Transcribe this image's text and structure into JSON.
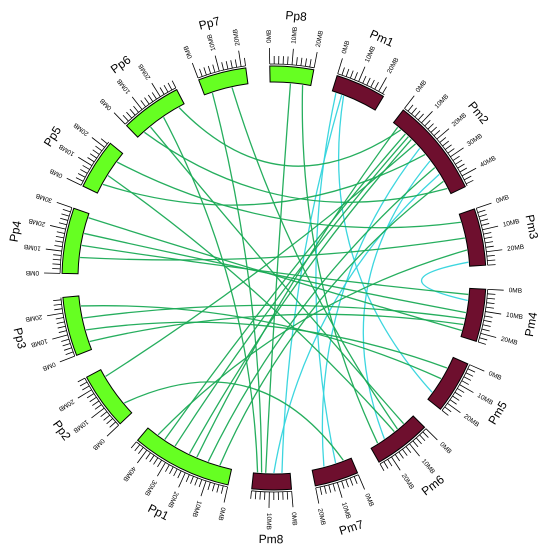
{
  "colors": {
    "pp_fill": "#66ff22",
    "pm_fill": "#6e0f2e",
    "link_green": "#1aaa55",
    "link_cyan": "#33d4dd"
  },
  "chromosomes": [
    {
      "name": "Pp8",
      "group": "pp",
      "length_mb": 20
    },
    {
      "name": "Pm1",
      "group": "pm",
      "length_mb": 23
    },
    {
      "name": "Pm2",
      "group": "pm",
      "length_mb": 45
    },
    {
      "name": "Pm3",
      "group": "pm",
      "length_mb": 26
    },
    {
      "name": "Pm4",
      "group": "pm",
      "length_mb": 24
    },
    {
      "name": "Pm5",
      "group": "pm",
      "length_mb": 24
    },
    {
      "name": "Pm6",
      "group": "pm",
      "length_mb": 26
    },
    {
      "name": "Pm7",
      "group": "pm",
      "length_mb": 20
    },
    {
      "name": "Pm8",
      "group": "pm",
      "length_mb": 18
    },
    {
      "name": "Pp1",
      "group": "pp",
      "length_mb": 46
    },
    {
      "name": "Pp2",
      "group": "pp",
      "length_mb": 26
    },
    {
      "name": "Pp3",
      "group": "pp",
      "length_mb": 27
    },
    {
      "name": "Pp4",
      "group": "pp",
      "length_mb": 30
    },
    {
      "name": "Pp5",
      "group": "pp",
      "length_mb": 23
    },
    {
      "name": "Pp6",
      "group": "pp",
      "length_mb": 28
    },
    {
      "name": "Pp7",
      "group": "pp",
      "length_mb": 22
    }
  ],
  "tick_unit": "MB",
  "links": [
    {
      "a": "Pp7",
      "a_mb": 4,
      "b": "Pm8",
      "b_mb": 14,
      "color": "green"
    },
    {
      "a": "Pp8",
      "a_mb": 10,
      "b": "Pm8",
      "b_mb": 12,
      "color": "green"
    },
    {
      "a": "Pp8",
      "a_mb": 16,
      "b": "Pm6",
      "b_mb": 22,
      "color": "green"
    },
    {
      "a": "Pm1",
      "a_mb": 2,
      "b": "Pm7",
      "b_mb": 8,
      "color": "cyan"
    },
    {
      "a": "Pm1",
      "a_mb": 5,
      "b": "Pm8",
      "b_mb": 4,
      "color": "cyan"
    },
    {
      "a": "Pm1",
      "a_mb": 6,
      "b": "Pm5",
      "b_mb": 20,
      "color": "cyan"
    },
    {
      "a": "Pm2",
      "a_mb": 5,
      "b": "Pp6",
      "b_mb": 25,
      "color": "green"
    },
    {
      "a": "Pm2",
      "a_mb": 8,
      "b": "Pp1",
      "b_mb": 36,
      "color": "green"
    },
    {
      "a": "Pm2",
      "a_mb": 10,
      "b": "Pp1",
      "b_mb": 30,
      "color": "green"
    },
    {
      "a": "Pm2",
      "a_mb": 12,
      "b": "Pp1",
      "b_mb": 22,
      "color": "green"
    },
    {
      "a": "Pm2",
      "a_mb": 15,
      "b": "Pp2",
      "b_mb": 22,
      "color": "green"
    },
    {
      "a": "Pm2",
      "a_mb": 18,
      "b": "Pm7",
      "b_mb": 14,
      "color": "cyan"
    },
    {
      "a": "Pm2",
      "a_mb": 22,
      "b": "Pp5",
      "b_mb": 5,
      "color": "green"
    },
    {
      "a": "Pm2",
      "a_mb": 26,
      "b": "Pm6",
      "b_mb": 18,
      "color": "cyan"
    },
    {
      "a": "Pm2",
      "a_mb": 30,
      "b": "Pp1",
      "b_mb": 12,
      "color": "green"
    },
    {
      "a": "Pm2",
      "a_mb": 34,
      "b": "Pm8",
      "b_mb": 8,
      "color": "cyan"
    },
    {
      "a": "Pm2",
      "a_mb": 38,
      "b": "Pp1",
      "b_mb": 6,
      "color": "green"
    },
    {
      "a": "Pm3",
      "a_mb": 4,
      "b": "Pp5",
      "b_mb": 18,
      "color": "green"
    },
    {
      "a": "Pm3",
      "a_mb": 12,
      "b": "Pp4",
      "b_mb": 8,
      "color": "green"
    },
    {
      "a": "Pm3",
      "a_mb": 18,
      "b": "Pp1",
      "b_mb": 40,
      "color": "green"
    },
    {
      "a": "Pm3",
      "a_mb": 24,
      "b": "Pm4",
      "b_mb": 6,
      "color": "cyan"
    },
    {
      "a": "Pm4",
      "a_mb": 12,
      "b": "Pp4",
      "b_mb": 20,
      "color": "green"
    },
    {
      "a": "Pm4",
      "a_mb": 18,
      "b": "Pp3",
      "b_mb": 4,
      "color": "green"
    },
    {
      "a": "Pm4",
      "a_mb": 21,
      "b": "Pp4",
      "b_mb": 28,
      "color": "green"
    },
    {
      "a": "Pm5",
      "a_mb": 6,
      "b": "Pp3",
      "b_mb": 10,
      "color": "green"
    },
    {
      "a": "Pm5",
      "a_mb": 12,
      "b": "Pp3",
      "b_mb": 22,
      "color": "green"
    },
    {
      "a": "Pm6",
      "a_mb": 6,
      "b": "Pp6",
      "b_mb": 8,
      "color": "green"
    },
    {
      "a": "Pm6",
      "a_mb": 12,
      "b": "Pp5",
      "b_mb": 10,
      "color": "green"
    },
    {
      "a": "Pm7",
      "a_mb": 4,
      "b": "Pp2",
      "b_mb": 6,
      "color": "green"
    },
    {
      "a": "Pp6",
      "a_mb": 16,
      "b": "Pm8",
      "b_mb": 16,
      "color": "green"
    },
    {
      "a": "Pp7",
      "a_mb": 14,
      "b": "Pm6",
      "b_mb": 10,
      "color": "green"
    },
    {
      "a": "Pp6",
      "a_mb": 4,
      "b": "Pm2",
      "b_mb": 42,
      "color": "green"
    },
    {
      "a": "Pp4",
      "a_mb": 14,
      "b": "Pm4",
      "b_mb": 3,
      "color": "green"
    },
    {
      "a": "Pp3",
      "a_mb": 16,
      "b": "Pm4",
      "b_mb": 15,
      "color": "green"
    },
    {
      "a": "Pp1",
      "a_mb": 18,
      "b": "Pm2",
      "b_mb": 3,
      "color": "green"
    }
  ]
}
